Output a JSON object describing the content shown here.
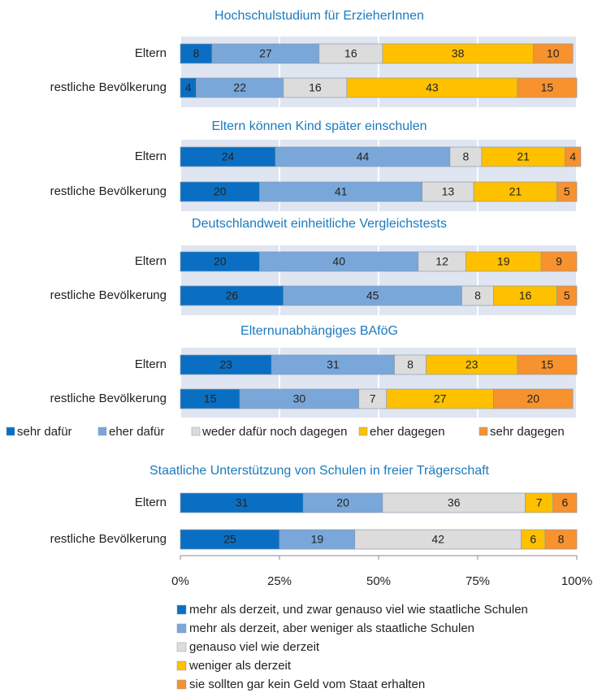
{
  "chart_data": [
    {
      "type": "bar",
      "orientation": "horizontal",
      "stacked": true,
      "title": "Hochschulstudium  für ErzieherInnen",
      "categories": [
        "Eltern",
        "restliche Bevölkerung"
      ],
      "xlim": [
        0,
        100
      ],
      "grid": true,
      "series": [
        {
          "name": "sehr dafür",
          "color": "#0a6fc2",
          "label_color": "#ffffff",
          "values": [
            8,
            4
          ]
        },
        {
          "name": "eher dafür",
          "color": "#7aa7d9",
          "label_color": "#1a6fb8",
          "values": [
            27,
            22
          ]
        },
        {
          "name": "weder dafür noch dagegen",
          "color": "#dcdcdc",
          "label_color": "#555555",
          "values": [
            16,
            16
          ]
        },
        {
          "name": "eher dagegen",
          "color": "#ffc000",
          "label_color": "#f08a1c",
          "values": [
            38,
            43
          ]
        },
        {
          "name": "sehr dagegen",
          "color": "#f7922f",
          "label_color": "#a0280e",
          "values": [
            10,
            15
          ]
        }
      ]
    },
    {
      "type": "bar",
      "orientation": "horizontal",
      "stacked": true,
      "title": "Eltern können Kind später einschulen",
      "categories": [
        "Eltern",
        "restliche Bevölkerung"
      ],
      "xlim": [
        0,
        100
      ],
      "grid": true,
      "series": [
        {
          "name": "sehr dafür",
          "color": "#0a6fc2",
          "label_color": "#ffffff",
          "values": [
            24,
            20
          ]
        },
        {
          "name": "eher dafür",
          "color": "#7aa7d9",
          "label_color": "#1a6fb8",
          "values": [
            44,
            41
          ]
        },
        {
          "name": "weder dafür noch dagegen",
          "color": "#dcdcdc",
          "label_color": "#555555",
          "values": [
            8,
            13
          ]
        },
        {
          "name": "eher dagegen",
          "color": "#ffc000",
          "label_color": "#f08a1c",
          "values": [
            21,
            21
          ]
        },
        {
          "name": "sehr dagegen",
          "color": "#f7922f",
          "label_color": "#a0280e",
          "values": [
            4,
            5
          ]
        }
      ]
    },
    {
      "type": "bar",
      "orientation": "horizontal",
      "stacked": true,
      "title": "Deutschlandweit einheitliche Vergleichstests",
      "categories": [
        "Eltern",
        "restliche Bevölkerung"
      ],
      "xlim": [
        0,
        100
      ],
      "grid": true,
      "series": [
        {
          "name": "sehr dafür",
          "color": "#0a6fc2",
          "label_color": "#ffffff",
          "values": [
            20,
            26
          ]
        },
        {
          "name": "eher dafür",
          "color": "#7aa7d9",
          "label_color": "#1a6fb8",
          "values": [
            40,
            45
          ]
        },
        {
          "name": "weder dafür noch dagegen",
          "color": "#dcdcdc",
          "label_color": "#555555",
          "values": [
            12,
            8
          ]
        },
        {
          "name": "eher dagegen",
          "color": "#ffc000",
          "label_color": "#f08a1c",
          "values": [
            19,
            16
          ]
        },
        {
          "name": "sehr dagegen",
          "color": "#f7922f",
          "label_color": "#a0280e",
          "values": [
            9,
            5
          ]
        }
      ]
    },
    {
      "type": "bar",
      "orientation": "horizontal",
      "stacked": true,
      "title": "Elternunabhängiges BAföG",
      "categories": [
        "Eltern",
        "restliche Bevölkerung"
      ],
      "xlim": [
        0,
        100
      ],
      "grid": true,
      "legend": "bottom",
      "series": [
        {
          "name": "sehr dafür",
          "color": "#0a6fc2",
          "label_color": "#ffffff",
          "values": [
            23,
            15
          ]
        },
        {
          "name": "eher dafür",
          "color": "#7aa7d9",
          "label_color": "#1a6fb8",
          "values": [
            31,
            30
          ]
        },
        {
          "name": "weder dafür noch dagegen",
          "color": "#dcdcdc",
          "label_color": "#555555",
          "values": [
            8,
            7
          ]
        },
        {
          "name": "eher dagegen",
          "color": "#ffc000",
          "label_color": "#f08a1c",
          "values": [
            23,
            27
          ]
        },
        {
          "name": "sehr dagegen",
          "color": "#f7922f",
          "label_color": "#a0280e",
          "values": [
            15,
            20
          ]
        }
      ]
    },
    {
      "type": "bar",
      "orientation": "horizontal",
      "stacked": true,
      "title": "Staatliche Unterstützung von Schulen in freier Trägerschaft",
      "categories": [
        "Eltern",
        "restliche Bevölkerung"
      ],
      "xlim": [
        0,
        100
      ],
      "grid": false,
      "legend": "bottom",
      "xticks": [
        {
          "value": 0,
          "label": "0%"
        },
        {
          "value": 25,
          "label": "25%"
        },
        {
          "value": 50,
          "label": "50%"
        },
        {
          "value": 75,
          "label": "75%"
        },
        {
          "value": 100,
          "label": "100%"
        }
      ],
      "series": [
        {
          "name": "mehr als derzeit, und zwar genauso viel wie staatliche Schulen",
          "color": "#0a6fc2",
          "label_color": "#ffffff",
          "values": [
            31,
            25
          ]
        },
        {
          "name": "mehr als derzeit, aber weniger als staatliche Schulen",
          "color": "#7aa7d9",
          "label_color": "#1a6fb8",
          "values": [
            20,
            19
          ]
        },
        {
          "name": "genauso viel wie derzeit",
          "color": "#dcdcdc",
          "label_color": "#555555",
          "values": [
            36,
            42
          ]
        },
        {
          "name": "weniger als derzeit",
          "color": "#ffc000",
          "label_color": "#f08a1c",
          "values": [
            7,
            6
          ]
        },
        {
          "name": "sie sollten gar kein Geld vom Staat erhalten",
          "color": "#f7922f",
          "label_color": "#a0280e",
          "values": [
            6,
            8
          ]
        }
      ]
    }
  ]
}
